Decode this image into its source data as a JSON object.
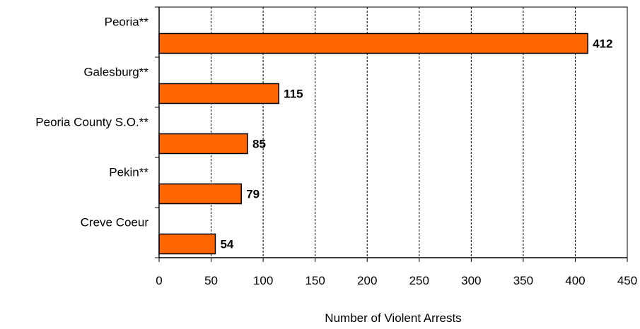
{
  "chart_data": {
    "type": "bar",
    "orientation": "horizontal",
    "categories": [
      "Peoria**",
      "Galesburg**",
      "Peoria County S.O.**",
      "Pekin**",
      "Creve Coeur"
    ],
    "values": [
      412,
      115,
      85,
      79,
      54
    ],
    "title": "",
    "xlabel": "Number of Violent Arrests",
    "ylabel": "",
    "xlim": [
      0,
      450
    ],
    "xticks": [
      "0",
      "50",
      "100",
      "150",
      "200",
      "250",
      "300",
      "350",
      "400",
      "450"
    ],
    "grid": "vertical dashed",
    "bar_color": "#FF6600",
    "legend": "none"
  }
}
